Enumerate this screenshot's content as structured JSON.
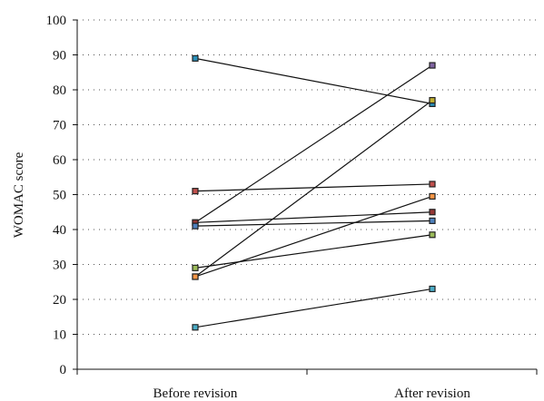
{
  "chart_data": {
    "type": "line",
    "title": "",
    "xlabel": "",
    "ylabel": "WOMAC score",
    "categories": [
      "Before revision",
      "After revision"
    ],
    "ylim": [
      0,
      100
    ],
    "yticks": [
      0,
      10,
      20,
      30,
      40,
      50,
      60,
      70,
      80,
      90,
      100
    ],
    "grid": true,
    "legend": "none",
    "series": [
      {
        "values": [
          89,
          76
        ],
        "color": "#2a8fb8"
      },
      {
        "values": [
          51,
          53
        ],
        "color": "#c0504d"
      },
      {
        "values": [
          42,
          87
        ],
        "color": "#8064a2"
      },
      {
        "values": [
          42,
          45
        ],
        "color": "#953735"
      },
      {
        "values": [
          41,
          42.5
        ],
        "color": "#4f81bd"
      },
      {
        "values": [
          29,
          38.5
        ],
        "color": "#9bbb59"
      },
      {
        "values": [
          26.5,
          77
        ],
        "color": "#c0b030"
      },
      {
        "values": [
          26.5,
          49.5
        ],
        "color": "#f79646"
      },
      {
        "values": [
          12,
          23
        ],
        "color": "#4bacc6"
      }
    ]
  }
}
